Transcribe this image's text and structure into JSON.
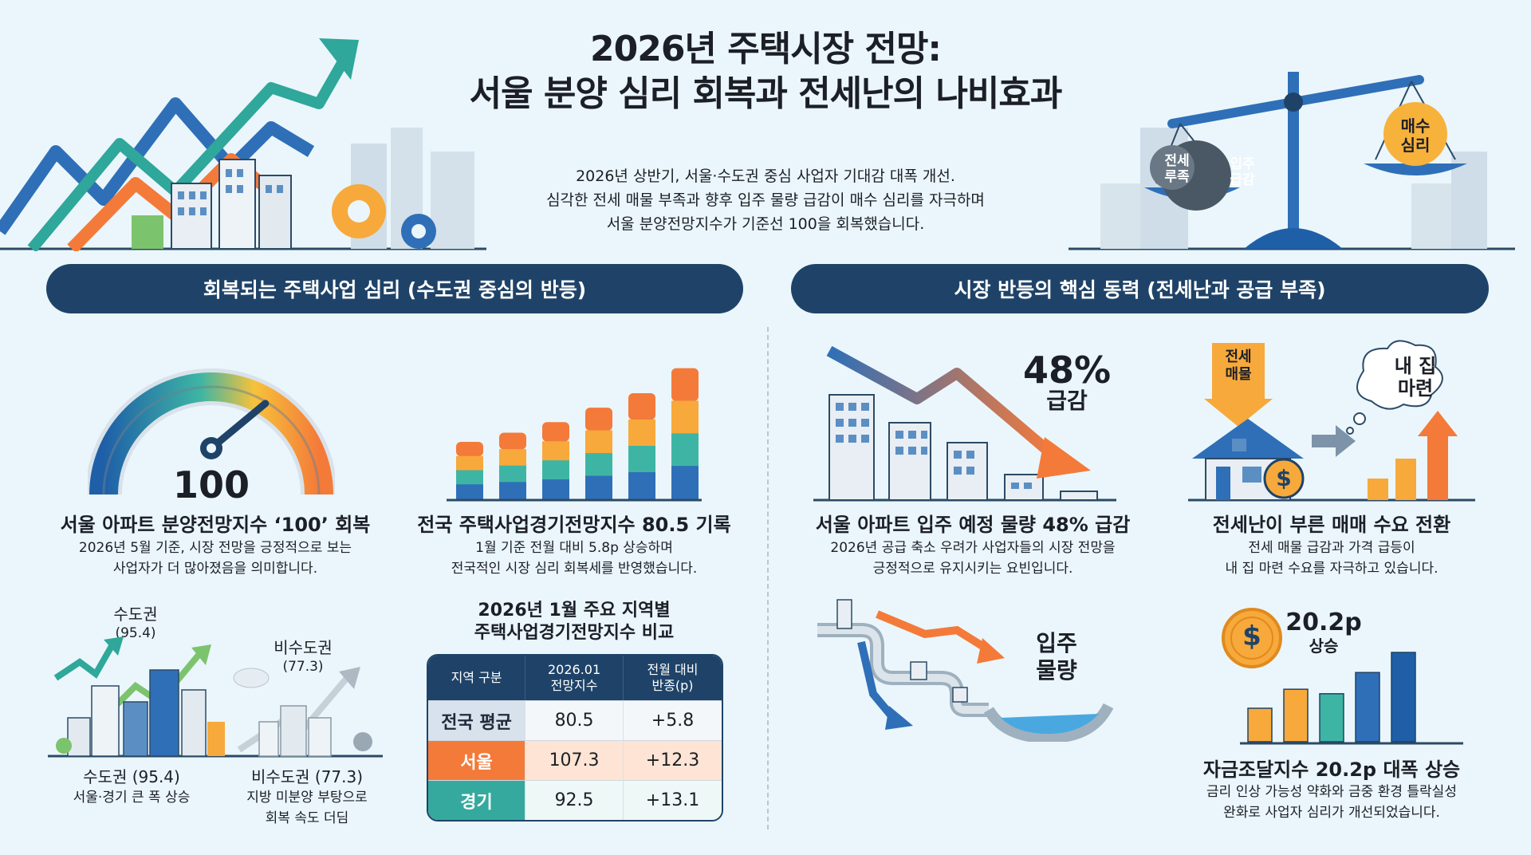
{
  "header": {
    "title_line1": "2026년 주택시장 전망:",
    "title_line2": "서울 분양 심리 회복과 전세난의 나비효과",
    "intro_line1": "2026년 상반기, 서울·수도권 중심 사업자 기대감 대폭 개선.",
    "intro_line2": "심각한 전세 매물 부족과 향후 입주 물량 급감이 매수 심리를 자극하며",
    "intro_line3": "서울 분양전망지수가 기준선 100을 회복했습니다."
  },
  "scale_illustration": {
    "left_weights": [
      "전세\n루족",
      "입주\n급감"
    ],
    "left_weight_1_line1": "전세",
    "left_weight_1_line2": "루족",
    "left_weight_2_line1": "입주",
    "left_weight_2_line2": "급감",
    "right_weight_line1": "매수",
    "right_weight_line2": "심리"
  },
  "left_section": {
    "banner": "회복되는 주택사업 심리 (수도권 중심의 반등)",
    "gauge": {
      "value_label": "100",
      "value_fraction": 0.78,
      "title": "서울 아파트 분양전망지수 ‘100’ 회복",
      "desc_line1": "2026년 5월 기준, 시장 전망을 긍정적으로 보는",
      "desc_line2": "사업자가 더 많아졌음을 의미합니다."
    },
    "bars": {
      "title": "전국 주택사업경기전망지수 80.5 기록",
      "desc_line1": "1월 기준 전월 대비 5.8p 상승하며",
      "desc_line2": "전국적인 시장 심리 회복세를 반영했습니다.",
      "relative_heights": [
        0.43,
        0.5,
        0.58,
        0.69,
        0.8,
        0.99
      ],
      "colors": [
        "#f47a3a",
        "#f7a93b",
        "#3eb5a4",
        "#2f6fb8"
      ]
    },
    "metro": {
      "top_label": "수도권",
      "top_value": "(95.4)",
      "caption_title": "수도권 (95.4)",
      "caption_desc": "서울·경기 큰 폭 상승"
    },
    "nonmetro": {
      "top_label": "비수도권",
      "top_value": "(77.3)",
      "caption_title": "비수도권 (77.3)",
      "caption_desc_line1": "지방 미분양 부탕으로",
      "caption_desc_line2": "회복 속도 더딤"
    },
    "table": {
      "title_line1": "2026년 1월 주요 지역별",
      "title_line2": "주택사업경기전망지수 비교",
      "headers": [
        "지역 구분",
        "2026.01\n전망지수",
        "전월 대비\n반종(p)"
      ],
      "header_col2_line1": "2026.01",
      "header_col2_line2": "전망지수",
      "header_col3_line1": "전월 대비",
      "header_col3_line2": "반종(p)",
      "rows": [
        {
          "region": "전국 평균",
          "index": "80.5",
          "change": "+5.8"
        },
        {
          "region": "서울",
          "index": "107.3",
          "change": "+12.3"
        },
        {
          "region": "경기",
          "index": "92.5",
          "change": "+13.1"
        }
      ]
    }
  },
  "right_section": {
    "banner": "시장 반등의 핵심 동력 (전세난과 공급 부족)",
    "supply": {
      "big_value": "48%",
      "big_label": "급감",
      "title": "서울 아파트 입주 예정 물량 48% 급감",
      "desc_line1": "2026년 공급 축소 우려가 사업자들의 시장 전망을",
      "desc_line2": "긍정적으로 유지시키는 요빈입니다.",
      "pipe_label_line1": "입주",
      "pipe_label_line2": "물량"
    },
    "demand": {
      "sign_line1": "전세",
      "sign_line2": "매물",
      "cloud_line1": "내 집",
      "cloud_line2": "마련",
      "dollar": "$",
      "title": "전세난이 부른 매매 수요 전환",
      "desc_line1": "전세 매물 급감과 가격 급등이",
      "desc_line2": "내 집 마련 수요를 자극하고 있습니다."
    },
    "funding": {
      "coin": "$",
      "value": "20.2p",
      "value_label": "상승",
      "title": "자금조달지수 20.2p 대폭 상승",
      "desc_line1": "금리 인상 가능성 약화와 금중 환경 틀락실성",
      "desc_line2": "완화로 사업자 심리가 개선되었습니다.",
      "relative_heights": [
        0.3,
        0.47,
        0.43,
        0.62,
        0.8
      ],
      "colors": [
        "#f7a93b",
        "#f7a93b",
        "#3eb5a4",
        "#2f6fb8",
        "#1f5fa8"
      ]
    }
  }
}
